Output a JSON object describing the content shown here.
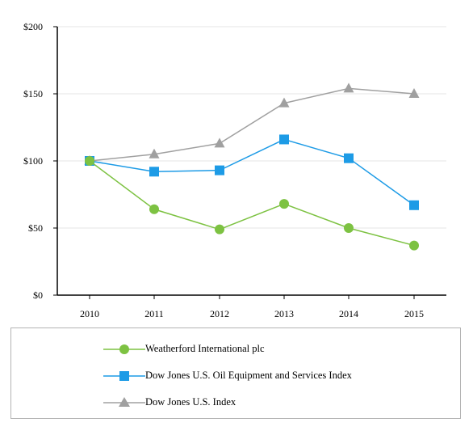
{
  "chart_data": {
    "type": "line",
    "categories": [
      "2010",
      "2011",
      "2012",
      "2013",
      "2014",
      "2015"
    ],
    "ylim": [
      0,
      200
    ],
    "yticks": [
      0,
      50,
      100,
      150,
      200
    ],
    "ytick_labels": [
      "$0",
      "$50",
      "$100",
      "$150",
      "$200"
    ],
    "grid": true,
    "legend_position": "bottom",
    "series": [
      {
        "name": "Weatherford International plc",
        "values": [
          100,
          64,
          49,
          68,
          50,
          37
        ],
        "color": "#7dc242",
        "marker": "circle"
      },
      {
        "name": "Dow Jones U.S. Oil Equipment and Services Index",
        "values": [
          100,
          92,
          93,
          116,
          102,
          67
        ],
        "color": "#1d9be6",
        "marker": "square"
      },
      {
        "name": "Dow Jones U.S. Index",
        "values": [
          100,
          105,
          113,
          143,
          154,
          150
        ],
        "color": "#a0a0a0",
        "marker": "triangle"
      }
    ]
  }
}
